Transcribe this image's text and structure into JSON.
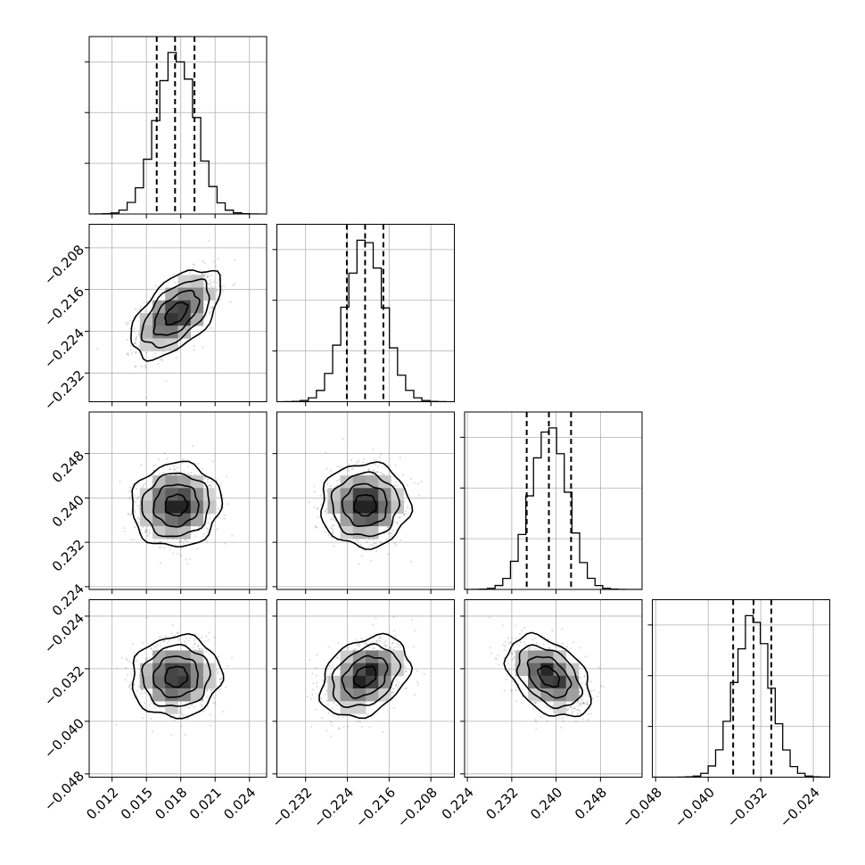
{
  "chart_data": {
    "type": "corner",
    "parameters": [
      {
        "ticks": [
          0.012,
          0.015,
          0.018,
          0.021,
          0.024
        ],
        "tick_labels": [
          "0.012",
          "0.015",
          "0.018",
          "0.021",
          "0.024"
        ],
        "range": [
          0.01,
          0.0255
        ],
        "mean": 0.0176,
        "std": 0.0017,
        "quantiles": [
          0.0159,
          0.0175,
          0.0192
        ]
      },
      {
        "ticks": [
          -0.232,
          -0.224,
          -0.216,
          -0.208
        ],
        "tick_labels": [
          "−0.232",
          "−0.224",
          "−0.216",
          "−0.208"
        ],
        "range": [
          -0.2375,
          -0.2035
        ],
        "mean": -0.2206,
        "std": 0.0037,
        "quantiles": [
          -0.2241,
          -0.2206,
          -0.2171
        ]
      },
      {
        "ticks": [
          0.224,
          0.232,
          0.24,
          0.248
        ],
        "tick_labels": [
          "0.224",
          "0.232",
          "0.240",
          "0.248"
        ],
        "range": [
          0.2235,
          0.2555
        ],
        "mean": 0.2387,
        "std": 0.0033,
        "quantiles": [
          0.2347,
          0.2387,
          0.2427
        ]
      },
      {
        "ticks": [
          -0.048,
          -0.04,
          -0.032,
          -0.024
        ],
        "tick_labels": [
          "−0.048",
          "−0.040",
          "−0.032",
          "−0.024"
        ],
        "range": [
          -0.0485,
          -0.0215
        ],
        "mean": -0.0332,
        "std": 0.0027,
        "quantiles": [
          -0.0362,
          -0.0331,
          -0.0304
        ]
      }
    ],
    "correlations": [
      [
        1,
        0.55,
        0.05,
        0.05
      ],
      [
        0.55,
        1,
        0.0,
        0.32
      ],
      [
        0.05,
        0.0,
        1,
        -0.42
      ],
      [
        0.05,
        0.32,
        -0.42,
        1
      ]
    ],
    "histogram_bins": 20,
    "contour_levels_sigma": [
      0.5,
      1.0,
      1.5,
      2.0
    ],
    "grid": true
  }
}
